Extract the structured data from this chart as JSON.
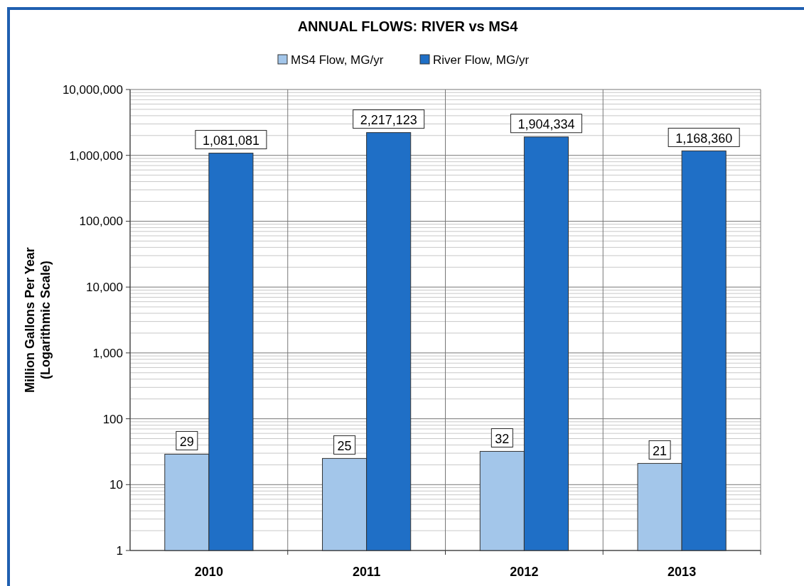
{
  "chart_data": {
    "type": "bar",
    "title": "ANNUAL FLOWS: RIVER vs MS4",
    "ylabel": "Million Gallons Per Year\n(Logarithmic Scale)",
    "categories": [
      "2010",
      "2011",
      "2012",
      "2013"
    ],
    "series": [
      {
        "name": "MS4 Flow, MG/yr",
        "color": "#a3c6ea",
        "values": [
          29,
          25,
          32,
          21
        ],
        "value_labels": [
          "29",
          "25",
          "32",
          "21"
        ]
      },
      {
        "name": "River Flow, MG/yr",
        "color": "#1f6fc6",
        "values": [
          1081081,
          2217123,
          1904334,
          1168360
        ],
        "value_labels": [
          "1,081,081",
          "2,217,123",
          "1,904,334",
          "1,168,360"
        ]
      }
    ],
    "log": "y",
    "ylim": [
      1,
      10000000
    ],
    "yticks": [
      {
        "value": 1,
        "label": "1"
      },
      {
        "value": 10,
        "label": "10"
      },
      {
        "value": 100,
        "label": "100"
      },
      {
        "value": 1000,
        "label": "1,000"
      },
      {
        "value": 10000,
        "label": "10,000"
      },
      {
        "value": 100000,
        "label": "100,000"
      },
      {
        "value": 1000000,
        "label": "1,000,000"
      },
      {
        "value": 10000000,
        "label": "10,000,000"
      }
    ],
    "grid": true,
    "legend": "top"
  }
}
